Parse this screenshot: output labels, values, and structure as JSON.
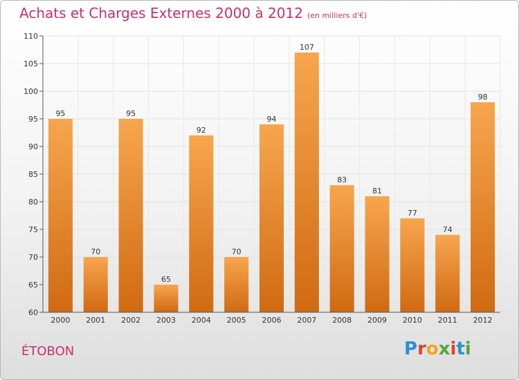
{
  "title": {
    "main": "Achats et Charges Externes 2000 à 2012",
    "unit": "(en milliers d'€)"
  },
  "place": "ÉTOBON",
  "logo": {
    "letters": [
      "P",
      "r",
      "o",
      "x",
      "i",
      "t",
      "i"
    ],
    "colors": [
      "#2a8fd6",
      "#e3402f",
      "#f2a51d",
      "#52a83b",
      "#e3402f",
      "#2a8fd6",
      "#52a83b"
    ]
  },
  "colors": {
    "title": "#c8306a",
    "bar_light": "#f7a64e",
    "bar_dark": "#d06a12"
  },
  "chart_data": {
    "type": "bar",
    "title": "Achats et Charges Externes 2000 à 2012",
    "subtitle": "(en milliers d'€)",
    "xlabel": "",
    "ylabel": "",
    "categories": [
      "2000",
      "2001",
      "2002",
      "2003",
      "2004",
      "2005",
      "2006",
      "2007",
      "2008",
      "2009",
      "2010",
      "2011",
      "2012"
    ],
    "values": [
      95,
      70,
      95,
      65,
      92,
      70,
      94,
      107,
      83,
      81,
      77,
      74,
      98
    ],
    "ylim": [
      60,
      110
    ],
    "yticks": [
      60,
      65,
      70,
      75,
      80,
      85,
      90,
      95,
      100,
      105,
      110
    ],
    "grid": true,
    "legend": "none"
  }
}
